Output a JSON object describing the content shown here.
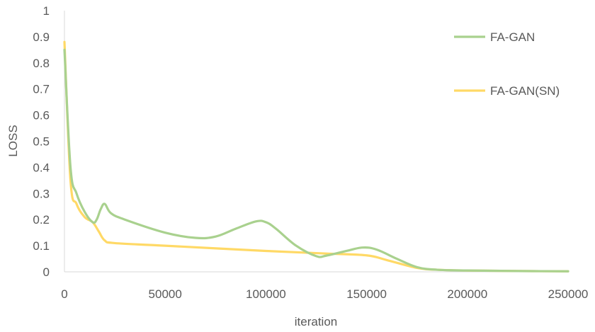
{
  "chart_data": {
    "type": "line",
    "title": "",
    "xlabel": "iteration",
    "ylabel": "LOSS",
    "xlim": [
      0,
      250000
    ],
    "ylim": [
      0,
      1
    ],
    "x_ticks": [
      "0",
      "50000",
      "100000",
      "150000",
      "200000",
      "250000"
    ],
    "y_ticks": [
      "0",
      "0.1",
      "0.2",
      "0.3",
      "0.4",
      "0.5",
      "0.6",
      "0.7",
      "0.8",
      "0.9",
      "1"
    ],
    "grid": false,
    "legend_position": "right",
    "series": [
      {
        "name": "FA-GAN",
        "color": "#a9d18e",
        "x": [
          0,
          3000,
          6000,
          10000,
          14000,
          16000,
          18000,
          20000,
          23000,
          30000,
          50000,
          65000,
          75000,
          85000,
          95000,
          100000,
          105000,
          115000,
          125000,
          130000,
          140000,
          148000,
          155000,
          165000,
          175000,
          185000,
          200000,
          225000,
          250000
        ],
        "y": [
          0.85,
          0.4,
          0.3,
          0.23,
          0.19,
          0.2,
          0.24,
          0.26,
          0.225,
          0.2,
          0.15,
          0.13,
          0.135,
          0.165,
          0.193,
          0.19,
          0.165,
          0.1,
          0.06,
          0.062,
          0.08,
          0.093,
          0.085,
          0.05,
          0.018,
          0.008,
          0.005,
          0.003,
          0.002
        ]
      },
      {
        "name": "FA-GAN(SN)",
        "color": "#ffd966",
        "x": [
          0,
          3000,
          6000,
          10000,
          14000,
          17000,
          20000,
          25000,
          50000,
          100000,
          130000,
          150000,
          160000,
          175000,
          185000,
          200000,
          225000,
          250000
        ],
        "y": [
          0.88,
          0.35,
          0.26,
          0.21,
          0.19,
          0.155,
          0.12,
          0.11,
          0.1,
          0.08,
          0.07,
          0.063,
          0.045,
          0.015,
          0.008,
          0.005,
          0.003,
          0.002
        ]
      }
    ]
  }
}
